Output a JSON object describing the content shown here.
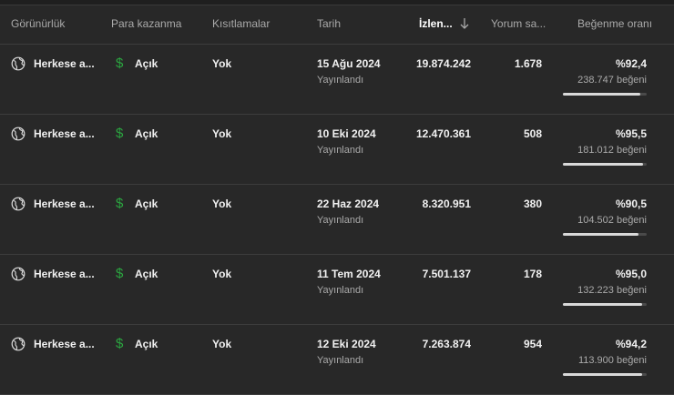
{
  "header": {
    "visibility": "Görünürlük",
    "monetization": "Para kazanma",
    "restrictions": "Kısıtlamalar",
    "date": "Tarih",
    "views": "İzlen...",
    "comments": "Yorum sa...",
    "like_ratio": "Beğenme oranı",
    "sort_icon": "arrow-down-icon"
  },
  "rows": [
    {
      "visibility": "Herkese a...",
      "monetization": "Açık",
      "restrictions": "Yok",
      "date": "15 Ağu 2024",
      "status": "Yayınlandı",
      "views": "19.874.242",
      "comments": "1.678",
      "like_pct": "%92,4",
      "likes": "238.747 beğeni",
      "ratio": 0.924
    },
    {
      "visibility": "Herkese a...",
      "monetization": "Açık",
      "restrictions": "Yok",
      "date": "10 Eki 2024",
      "status": "Yayınlandı",
      "views": "12.470.361",
      "comments": "508",
      "like_pct": "%95,5",
      "likes": "181.012 beğeni",
      "ratio": 0.955
    },
    {
      "visibility": "Herkese a...",
      "monetization": "Açık",
      "restrictions": "Yok",
      "date": "22 Haz 2024",
      "status": "Yayınlandı",
      "views": "8.320.951",
      "comments": "380",
      "like_pct": "%90,5",
      "likes": "104.502 beğeni",
      "ratio": 0.905
    },
    {
      "visibility": "Herkese a...",
      "monetization": "Açık",
      "restrictions": "Yok",
      "date": "11 Tem 2024",
      "status": "Yayınlandı",
      "views": "7.501.137",
      "comments": "178",
      "like_pct": "%95,0",
      "likes": "132.223 beğeni",
      "ratio": 0.95
    },
    {
      "visibility": "Herkese a...",
      "monetization": "Açık",
      "restrictions": "Yok",
      "date": "12 Eki 2024",
      "status": "Yayınlandı",
      "views": "7.263.874",
      "comments": "954",
      "like_pct": "%94,2",
      "likes": "113.900 beğeni",
      "ratio": 0.942
    }
  ],
  "colors": {
    "monetization_icon": "#2ba640",
    "background": "#282828",
    "bar_fill": "#d9d9d9"
  },
  "icons": {
    "visibility": "globe-icon",
    "monetization": "dollar-icon"
  }
}
